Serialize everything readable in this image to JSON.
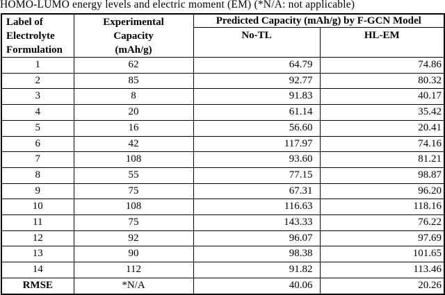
{
  "caption": "HOMO-LUMO energy levels and electric moment (EM) (*N/A: not applicable)",
  "table": {
    "headers": {
      "col1_lines": [
        "Label of",
        "Electrolyte",
        "Formulation"
      ],
      "col2_lines": [
        "Experimental",
        "Capacity",
        "(mAh/g)"
      ],
      "predicted_span": "Predicted Capacity (mAh/g) by F-GCN Model",
      "no_tl": "No-TL",
      "hl_em": "HL-EM"
    },
    "rows": [
      {
        "label": "1",
        "experimental": "62",
        "no_tl": "64.79",
        "hl_em": "74.86"
      },
      {
        "label": "2",
        "experimental": "85",
        "no_tl": "92.77",
        "hl_em": "80.32"
      },
      {
        "label": "3",
        "experimental": "8",
        "no_tl": "91.83",
        "hl_em": "40.17"
      },
      {
        "label": "4",
        "experimental": "20",
        "no_tl": "61.14",
        "hl_em": "35.42"
      },
      {
        "label": "5",
        "experimental": "16",
        "no_tl": "56.60",
        "hl_em": "20.41"
      },
      {
        "label": "6",
        "experimental": "42",
        "no_tl": "117.97",
        "hl_em": "74.16"
      },
      {
        "label": "7",
        "experimental": "108",
        "no_tl": "93.60",
        "hl_em": "81.21"
      },
      {
        "label": "8",
        "experimental": "55",
        "no_tl": "77.15",
        "hl_em": "98.87"
      },
      {
        "label": "9",
        "experimental": "75",
        "no_tl": "67.31",
        "hl_em": "96.20"
      },
      {
        "label": "10",
        "experimental": "108",
        "no_tl": "116.63",
        "hl_em": "118.16"
      },
      {
        "label": "11",
        "experimental": "75",
        "no_tl": "143.33",
        "hl_em": "76.22"
      },
      {
        "label": "12",
        "experimental": "92",
        "no_tl": "96.07",
        "hl_em": "97.69"
      },
      {
        "label": "13",
        "experimental": "90",
        "no_tl": "98.38",
        "hl_em": "101.65"
      },
      {
        "label": "14",
        "experimental": "112",
        "no_tl": "91.82",
        "hl_em": "113.46"
      }
    ],
    "footer": {
      "label": "RMSE",
      "experimental": "*N/A",
      "no_tl": "40.06",
      "hl_em": "20.26"
    }
  }
}
